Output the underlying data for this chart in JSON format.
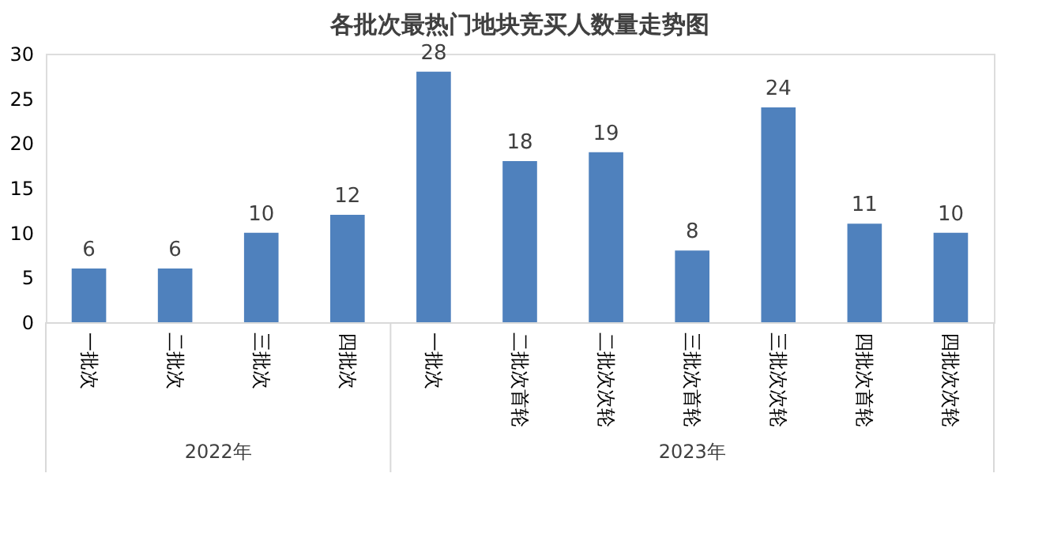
{
  "chart_data": {
    "type": "bar",
    "title": "各批次最热门地块竞买人数量走势图",
    "categories": [
      "一批次",
      "二批次",
      "三批次",
      "四批次",
      "一批次",
      "二批次首轮",
      "二批次次轮",
      "三批次首轮",
      "三批次次轮",
      "四批次首轮",
      "四批次次轮"
    ],
    "series": [
      {
        "color": "#4f81bd",
        "values": [
          6,
          6,
          10,
          12,
          28,
          18,
          19,
          8,
          24,
          11,
          10
        ]
      }
    ],
    "ylim": [
      0,
      30
    ],
    "yticks": [
      0,
      5,
      10,
      15,
      20,
      25,
      30
    ],
    "grid": false,
    "data_labels": true,
    "annotations": [
      "2022年",
      "2023年"
    ]
  }
}
